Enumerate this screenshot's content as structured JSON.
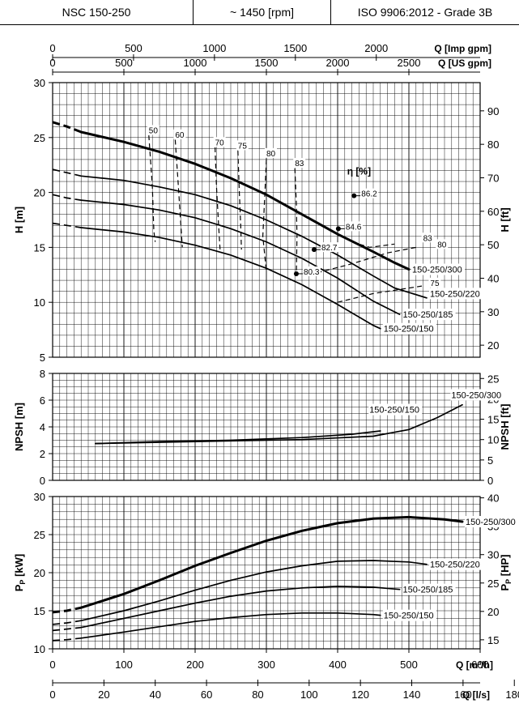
{
  "header": {
    "model": "NSC 150-250",
    "speed": "~ 1450 [rpm]",
    "standard": "ISO 9906:2012 - Grade 3B"
  },
  "colors": {
    "line": "#000000",
    "grid": "#000000",
    "background": "#ffffff"
  },
  "chart_data": [
    {
      "type": "line",
      "id": "head",
      "ylabel_left": "H [m]",
      "ylabel_right": "H [ft]",
      "ylim": [
        5,
        30
      ],
      "yticks": [
        5,
        10,
        15,
        20,
        25,
        30
      ],
      "right_ticks": [
        20,
        30,
        40,
        50,
        60,
        70,
        80,
        90
      ],
      "efficiency_label": "η [%]",
      "series": [
        {
          "name": "150-250/300",
          "bold": true,
          "dashed": [
            [
              0,
              26.4
            ],
            [
              20,
              26.0
            ],
            [
              40,
              25.5
            ]
          ],
          "solid": [
            [
              40,
              25.5
            ],
            [
              100,
              24.6
            ],
            [
              150,
              23.7
            ],
            [
              200,
              22.6
            ],
            [
              250,
              21.3
            ],
            [
              300,
              19.8
            ],
            [
              350,
              18.0
            ],
            [
              400,
              16.2
            ],
            [
              450,
              14.6
            ],
            [
              480,
              13.6
            ],
            [
              500,
              13.0
            ]
          ]
        },
        {
          "name": "150-250/220",
          "dashed": [
            [
              0,
              22.1
            ],
            [
              20,
              21.8
            ],
            [
              40,
              21.5
            ]
          ],
          "solid": [
            [
              40,
              21.5
            ],
            [
              100,
              21.1
            ],
            [
              150,
              20.5
            ],
            [
              200,
              19.8
            ],
            [
              250,
              18.8
            ],
            [
              300,
              17.5
            ],
            [
              350,
              16.0
            ],
            [
              400,
              14.3
            ],
            [
              450,
              12.4
            ],
            [
              480,
              11.3
            ],
            [
              525,
              10.4
            ]
          ]
        },
        {
          "name": "150-250/185",
          "dashed": [
            [
              0,
              19.8
            ],
            [
              20,
              19.5
            ],
            [
              40,
              19.3
            ]
          ],
          "solid": [
            [
              40,
              19.3
            ],
            [
              100,
              18.9
            ],
            [
              150,
              18.4
            ],
            [
              200,
              17.7
            ],
            [
              250,
              16.7
            ],
            [
              300,
              15.5
            ],
            [
              350,
              14.0
            ],
            [
              400,
              12.2
            ],
            [
              450,
              10.1
            ],
            [
              487,
              8.9
            ]
          ]
        },
        {
          "name": "150-250/150",
          "dashed": [
            [
              0,
              17.2
            ],
            [
              20,
              17.0
            ],
            [
              40,
              16.8
            ]
          ],
          "solid": [
            [
              40,
              16.8
            ],
            [
              100,
              16.4
            ],
            [
              150,
              15.9
            ],
            [
              200,
              15.2
            ],
            [
              250,
              14.3
            ],
            [
              300,
              13.1
            ],
            [
              350,
              11.6
            ],
            [
              400,
              9.8
            ],
            [
              450,
              7.9
            ],
            [
              460,
              7.6
            ]
          ]
        }
      ],
      "series_labels": [
        {
          "text": "150-250/300",
          "q": 500,
          "h": 13.0
        },
        {
          "text": "150-250/220",
          "q": 525,
          "h": 10.8
        },
        {
          "text": "150-250/185",
          "q": 487,
          "h": 8.9
        },
        {
          "text": "150-250/150",
          "q": 460,
          "h": 7.6
        }
      ],
      "iso_efficiency": [
        {
          "label": "50",
          "pts": [
            [
              135,
              25.2
            ],
            [
              140,
              20.5
            ],
            [
              142,
              16.5
            ],
            [
              144,
              15.5
            ]
          ]
        },
        {
          "label": "60",
          "pts": [
            [
              172,
              24.8
            ],
            [
              176,
              21.0
            ],
            [
              180,
              17.0
            ],
            [
              182,
              15.0
            ]
          ]
        },
        {
          "label": "70",
          "pts": [
            [
              228,
              24.1
            ],
            [
              230,
              20.5
            ],
            [
              233,
              17.0
            ],
            [
              235,
              14.8
            ]
          ]
        },
        {
          "label": "75",
          "pts": [
            [
              260,
              23.8
            ],
            [
              262,
              20.0
            ],
            [
              264,
              17.0
            ],
            [
              265,
              14.8
            ]
          ]
        },
        {
          "label": "80",
          "pts": [
            [
              300,
              23.0
            ],
            [
              298,
              20.0
            ],
            [
              295,
              16.0
            ],
            [
              300,
              12.8
            ]
          ]
        },
        {
          "label": "83",
          "pts": [
            [
              340,
              22.2
            ],
            [
              342,
              19.0
            ],
            [
              343,
              16.0
            ],
            [
              342,
              12.5
            ]
          ]
        },
        {
          "label": "83",
          "pts": [
            [
              420,
              15.5
            ],
            [
              445,
              15.0
            ],
            [
              480,
              15.3
            ]
          ]
        },
        {
          "label": "80",
          "pts": [
            [
              360,
              12.5
            ],
            [
              420,
              13.5
            ],
            [
              470,
              14.5
            ],
            [
              510,
              15.0
            ]
          ]
        },
        {
          "label": "75",
          "pts": [
            [
              400,
              10.0
            ],
            [
              450,
              10.8
            ],
            [
              520,
              11.5
            ]
          ]
        }
      ],
      "iso_label_pos": [
        [
          135,
          25.4
        ],
        [
          172,
          25.0
        ],
        [
          228,
          24.3
        ],
        [
          260,
          24.0
        ],
        [
          300,
          23.3
        ],
        [
          340,
          22.4
        ],
        [
          520,
          15.6
        ],
        [
          540,
          15.0
        ],
        [
          530,
          11.5
        ]
      ],
      "bep_points": [
        {
          "label": "86.2",
          "q": 423,
          "h": 19.7
        },
        {
          "label": "84.6",
          "q": 401,
          "h": 16.7
        },
        {
          "label": "82.7",
          "q": 367,
          "h": 14.8
        },
        {
          "label": "80.3",
          "q": 342,
          "h": 12.6
        }
      ]
    },
    {
      "type": "line",
      "id": "npsh",
      "ylabel_left": "NPSH [m]",
      "ylabel_right": "NPSH [ft]",
      "ylim": [
        0,
        8
      ],
      "yticks": [
        0,
        2,
        4,
        6,
        8
      ],
      "right_ticks": [
        0,
        5,
        10,
        15,
        20,
        25
      ],
      "series": [
        {
          "name": "150-250/300",
          "pts": [
            [
              60,
              2.75
            ],
            [
              150,
              2.85
            ],
            [
              250,
              2.95
            ],
            [
              350,
              3.05
            ],
            [
              450,
              3.3
            ],
            [
              500,
              3.8
            ],
            [
              540,
              4.7
            ],
            [
              575,
              5.65
            ]
          ]
        },
        {
          "name": "150-250/150",
          "pts": [
            [
              60,
              2.75
            ],
            [
              150,
              2.9
            ],
            [
              250,
              3.0
            ],
            [
              350,
              3.2
            ],
            [
              420,
              3.45
            ],
            [
              460,
              3.7
            ]
          ]
        }
      ],
      "series_labels": [
        {
          "text": "150-250/150",
          "q": 440,
          "h": 5.3
        },
        {
          "text": "150-250/300",
          "q": 555,
          "h": 6.4
        }
      ]
    },
    {
      "type": "line",
      "id": "power",
      "ylabel_left": "P_P [kW]",
      "ylabel_right": "P_P [HP]",
      "ylim": [
        10,
        30
      ],
      "yticks": [
        10,
        15,
        20,
        25,
        30
      ],
      "right_ticks": [
        15,
        20,
        25,
        30,
        35,
        40
      ],
      "series": [
        {
          "name": "150-250/300",
          "bold": true,
          "dashed": [
            [
              0,
              14.8
            ],
            [
              20,
              15.0
            ],
            [
              40,
              15.4
            ]
          ],
          "solid": [
            [
              40,
              15.4
            ],
            [
              100,
              17.2
            ],
            [
              150,
              19.0
            ],
            [
              200,
              20.9
            ],
            [
              250,
              22.6
            ],
            [
              300,
              24.2
            ],
            [
              350,
              25.5
            ],
            [
              400,
              26.5
            ],
            [
              450,
              27.1
            ],
            [
              500,
              27.3
            ],
            [
              550,
              27.0
            ],
            [
              575,
              26.7
            ]
          ]
        },
        {
          "name": "150-250/220",
          "dashed": [
            [
              0,
              13.2
            ],
            [
              20,
              13.4
            ],
            [
              40,
              13.7
            ]
          ],
          "solid": [
            [
              40,
              13.7
            ],
            [
              100,
              15.0
            ],
            [
              150,
              16.3
            ],
            [
              200,
              17.7
            ],
            [
              250,
              19.0
            ],
            [
              300,
              20.1
            ],
            [
              350,
              20.9
            ],
            [
              400,
              21.5
            ],
            [
              450,
              21.6
            ],
            [
              500,
              21.4
            ],
            [
              525,
              21.1
            ]
          ]
        },
        {
          "name": "150-250/185",
          "dashed": [
            [
              0,
              12.4
            ],
            [
              20,
              12.6
            ],
            [
              40,
              12.8
            ]
          ],
          "solid": [
            [
              40,
              12.8
            ],
            [
              100,
              14.0
            ],
            [
              150,
              15.0
            ],
            [
              200,
              16.0
            ],
            [
              250,
              16.9
            ],
            [
              300,
              17.6
            ],
            [
              350,
              18.0
            ],
            [
              400,
              18.2
            ],
            [
              450,
              18.1
            ],
            [
              487,
              17.8
            ]
          ]
        },
        {
          "name": "150-250/150",
          "dashed": [
            [
              0,
              11.1
            ],
            [
              20,
              11.2
            ],
            [
              40,
              11.4
            ]
          ],
          "solid": [
            [
              40,
              11.4
            ],
            [
              100,
              12.2
            ],
            [
              150,
              12.9
            ],
            [
              200,
              13.6
            ],
            [
              250,
              14.1
            ],
            [
              300,
              14.5
            ],
            [
              350,
              14.7
            ],
            [
              400,
              14.7
            ],
            [
              450,
              14.5
            ],
            [
              460,
              14.4
            ]
          ]
        }
      ],
      "series_labels": [
        {
          "text": "150-250/300",
          "q": 575,
          "h": 26.7
        },
        {
          "text": "150-250/220",
          "q": 525,
          "h": 21.1
        },
        {
          "text": "150-250/185",
          "q": 487,
          "h": 17.8
        },
        {
          "text": "150-250/150",
          "q": 460,
          "h": 14.4
        }
      ]
    }
  ],
  "axes": {
    "top1": {
      "label": "Q [Imp gpm]",
      "ticks": [
        0,
        500,
        1000,
        1500,
        2000
      ]
    },
    "top2": {
      "label": "Q [US gpm]",
      "ticks": [
        0,
        500,
        1000,
        1500,
        2000,
        2500
      ]
    },
    "bottom1": {
      "label": "Q [m³/h]",
      "ticks": [
        0,
        100,
        200,
        300,
        400,
        500,
        600
      ]
    },
    "bottom2": {
      "label": "Q [l/s]",
      "ticks": [
        0,
        20,
        40,
        60,
        80,
        100,
        120,
        140,
        160,
        180
      ]
    },
    "xlim_m3h": [
      0,
      600
    ]
  }
}
